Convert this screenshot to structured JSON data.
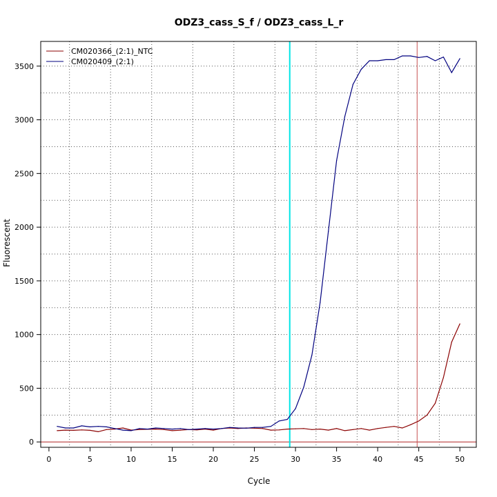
{
  "chart_data": {
    "type": "line",
    "title": "ODZ3_cass_S_f / ODZ3_cass_L_r",
    "xlabel": "Cycle",
    "ylabel": "Fluorescent",
    "xlim": [
      -1,
      52
    ],
    "ylim": [
      -50,
      3730
    ],
    "x_ticks": [
      0,
      5,
      10,
      15,
      20,
      25,
      30,
      35,
      40,
      45,
      50
    ],
    "y_ticks": [
      0,
      500,
      1000,
      1500,
      2000,
      2500,
      3000,
      3500
    ],
    "grid": true,
    "legend": "top-left",
    "threshold_y": 0,
    "vlines": [
      {
        "x": 29.3,
        "color": "#00e5e5"
      },
      {
        "x": 44.8,
        "color": "#c85050"
      }
    ],
    "series": [
      {
        "name": "CM020366_(2:1)_NTC",
        "color": "#8b0000",
        "x": [
          1,
          2,
          3,
          4,
          5,
          6,
          7,
          8,
          9,
          10,
          11,
          12,
          13,
          14,
          15,
          16,
          17,
          18,
          19,
          20,
          21,
          22,
          23,
          24,
          25,
          26,
          27,
          28,
          29,
          30,
          31,
          32,
          33,
          34,
          35,
          36,
          37,
          38,
          39,
          40,
          41,
          42,
          43,
          44,
          45,
          46,
          47,
          48,
          49,
          50
        ],
        "y": [
          105,
          110,
          108,
          112,
          108,
          95,
          115,
          120,
          130,
          110,
          115,
          118,
          120,
          115,
          105,
          110,
          115,
          112,
          120,
          110,
          125,
          130,
          125,
          130,
          128,
          125,
          110,
          112,
          120,
          122,
          125,
          115,
          120,
          110,
          125,
          105,
          115,
          125,
          110,
          125,
          135,
          145,
          130,
          160,
          195,
          250,
          360,
          600,
          930,
          1100
        ]
      },
      {
        "name": "CM020409_(2:1)",
        "color": "#00007f",
        "x": [
          1,
          2,
          3,
          4,
          5,
          6,
          7,
          8,
          9,
          10,
          11,
          12,
          13,
          14,
          15,
          16,
          17,
          18,
          19,
          20,
          21,
          22,
          23,
          24,
          25,
          26,
          27,
          28,
          29,
          30,
          31,
          32,
          33,
          34,
          35,
          36,
          37,
          38,
          39,
          40,
          41,
          42,
          43,
          44,
          45,
          46,
          47,
          48,
          49,
          50
        ],
        "y": [
          145,
          130,
          130,
          150,
          140,
          145,
          140,
          125,
          110,
          105,
          125,
          120,
          130,
          125,
          120,
          125,
          115,
          120,
          125,
          120,
          125,
          135,
          130,
          128,
          135,
          135,
          145,
          195,
          210,
          310,
          510,
          810,
          1300,
          1960,
          2620,
          3030,
          3330,
          3470,
          3550,
          3550,
          3560,
          3560,
          3595,
          3595,
          3580,
          3590,
          3550,
          3585,
          3440,
          3570
        ]
      }
    ]
  }
}
